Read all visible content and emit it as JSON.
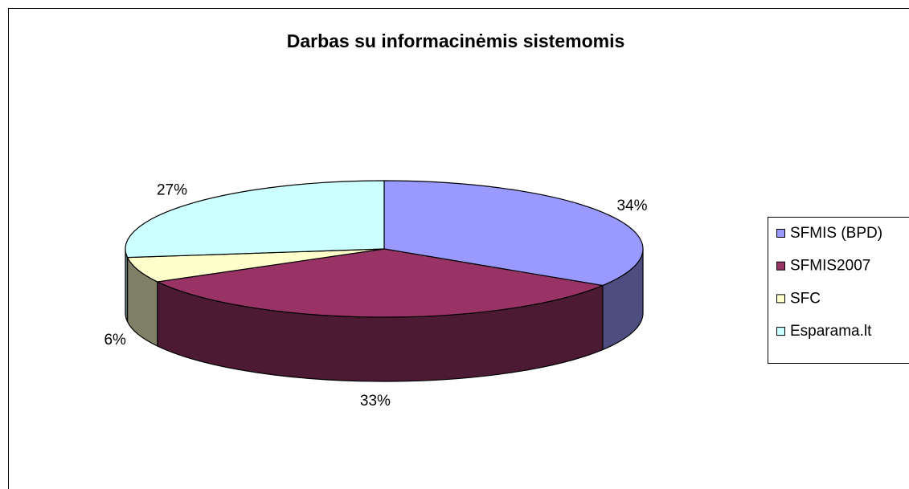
{
  "chart_data": {
    "type": "pie3d",
    "title": "Darbas su informacinėmis sistemomis",
    "categories": [
      "SFMIS (BPD)",
      "SFMIS2007",
      "SFC",
      "Esparama.lt"
    ],
    "values": [
      34,
      33,
      6,
      27
    ],
    "value_labels": [
      "34%",
      "33%",
      "6%",
      "27%"
    ],
    "colors": [
      "#9999ff",
      "#993366",
      "#ffffcc",
      "#ccffff"
    ],
    "legend": "right"
  }
}
